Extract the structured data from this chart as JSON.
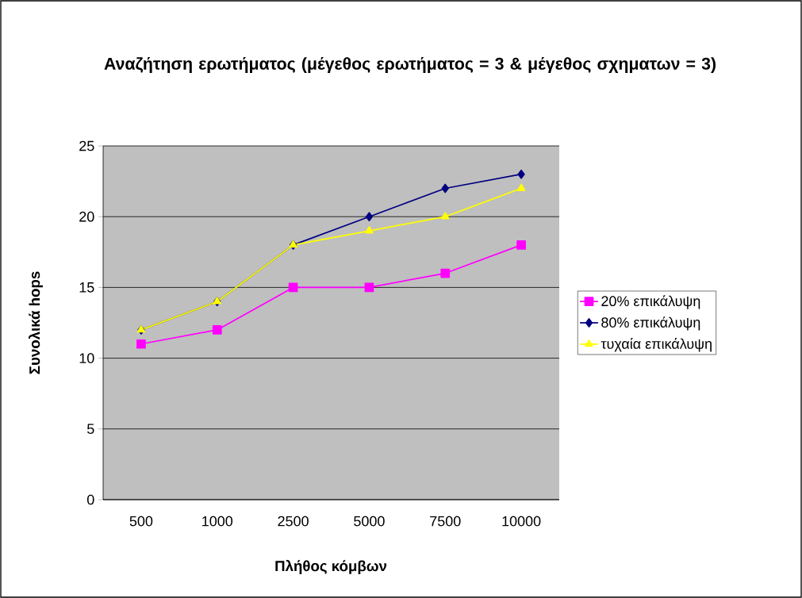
{
  "chart_data": {
    "type": "line",
    "title": "Αναζήτηση ερωτήματος (μέγεθος ερωτήματος = 3 & μέγεθος σχηματων = 3)",
    "xlabel": "Πλήθος κόμβων",
    "ylabel": "Συνολικά hops",
    "categories": [
      "500",
      "1000",
      "2500",
      "5000",
      "7500",
      "10000"
    ],
    "series": [
      {
        "name": "20% επικάλυψη",
        "color": "#ff00ff",
        "marker": "square",
        "values": [
          11,
          12,
          15,
          15,
          16,
          18
        ]
      },
      {
        "name": "80% επικάλυψη",
        "color": "#000080",
        "marker": "diamond",
        "values": [
          12,
          14,
          18,
          20,
          22,
          23
        ]
      },
      {
        "name": "τυχαία επικάλυψη",
        "color": "#ffff00",
        "marker": "triangle",
        "values": [
          12,
          14,
          18,
          19,
          20,
          22
        ]
      }
    ],
    "ylim": [
      0,
      25
    ],
    "yticks": [
      0,
      5,
      10,
      15,
      20,
      25
    ],
    "grid": "y",
    "legend": "right"
  }
}
